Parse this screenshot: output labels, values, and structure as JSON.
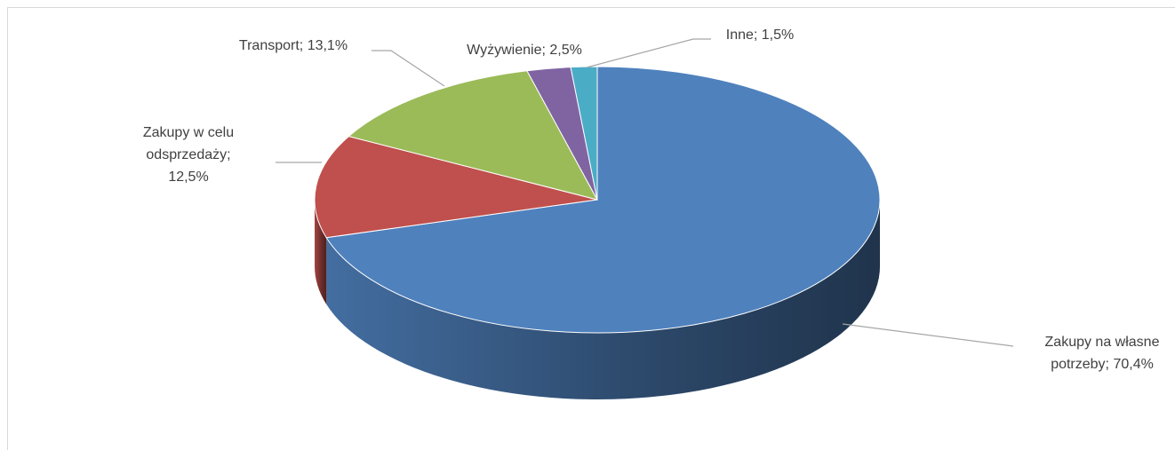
{
  "chart_data": {
    "type": "pie",
    "start_angle": 0,
    "direction": "clockwise",
    "three_d": true,
    "labels": [
      "Zakupy na własne potrzeby; 70,4%",
      "Zakupy w celu odsprzedaży; 12,5%",
      "Transport; 13,1%",
      "Wyżywienie; 2,5%",
      "Inne; 1,5%"
    ],
    "values": [
      70.4,
      12.5,
      13.1,
      2.5,
      1.5
    ],
    "colors": [
      "#4f81bd",
      "#c0504d",
      "#9bbb59",
      "#8064a2",
      "#4bacc6"
    ]
  }
}
